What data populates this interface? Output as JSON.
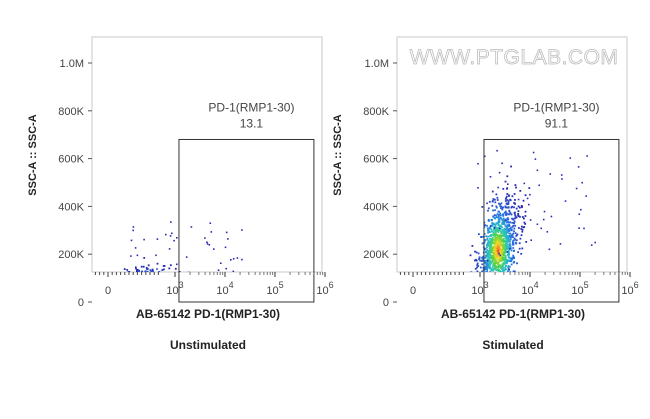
{
  "watermark": "WWW.PTGLAB.COM",
  "chart_data": [
    {
      "type": "scatter",
      "subtitle": "Unstimulated",
      "xlabel": "AB-65142 PD-1(RMP1-30)",
      "ylabel": "SSC-A :: SSC-A",
      "x_scale": "biexponential",
      "x_ticks": [
        "0",
        "10^3",
        "10^4",
        "10^5",
        "10^6"
      ],
      "y_ticks": [
        "0",
        "200K",
        "400K",
        "600K",
        "800K",
        "1.0M"
      ],
      "ylim": [
        0,
        1100000
      ],
      "gate": {
        "name": "PD-1(RMP1-30)",
        "percent": "13.1",
        "x_range": [
          1200,
          600000
        ],
        "y_range": [
          0,
          680000
        ]
      },
      "population": {
        "center_x": 600,
        "center_y": 70000,
        "spread": "compact",
        "positive_fraction": 0.131
      }
    },
    {
      "type": "scatter",
      "subtitle": "Stimulated",
      "xlabel": "AB-65142 PD-1(RMP1-30)",
      "ylabel": "SSC-A :: SSC-A",
      "x_scale": "biexponential",
      "x_ticks": [
        "0",
        "10^3",
        "10^4",
        "10^5",
        "10^6"
      ],
      "y_ticks": [
        "0",
        "200K",
        "400K",
        "600K",
        "800K",
        "1.0M"
      ],
      "ylim": [
        0,
        1100000
      ],
      "gate": {
        "name": "PD-1(RMP1-30)",
        "percent": "91.1",
        "x_range": [
          1200,
          600000
        ],
        "y_range": [
          0,
          680000
        ]
      },
      "population": {
        "center_x": 2200,
        "center_y": 220000,
        "spread": "elongated",
        "positive_fraction": 0.911
      }
    }
  ]
}
